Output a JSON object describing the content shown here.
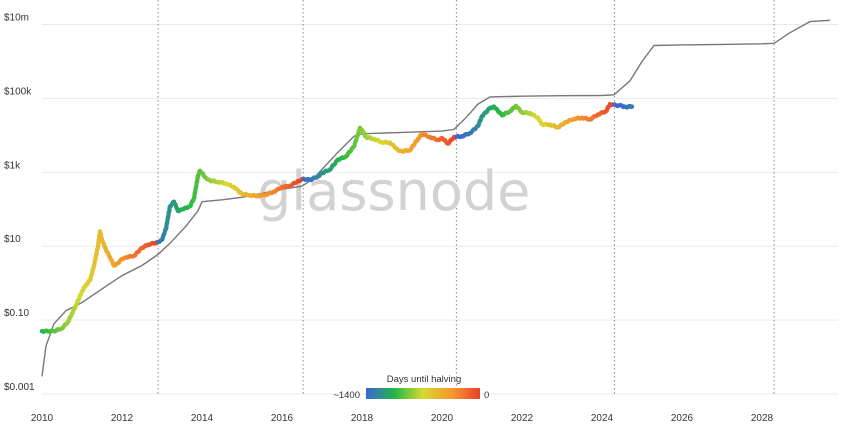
{
  "chart_data": {
    "type": "scatter",
    "title": "",
    "watermark": "glassnode",
    "x_ticks": [
      "2010",
      "2012",
      "2014",
      "2016",
      "2018",
      "2020",
      "2022",
      "2024",
      "2026",
      "2028"
    ],
    "y_ticks": [
      "$0.001",
      "$0.10",
      "$10",
      "$1k",
      "$100k",
      "$10m"
    ],
    "y_scale": "log",
    "xlim": [
      2010.0,
      2029.9
    ],
    "ylim": [
      0.001,
      15000000
    ],
    "grid": true,
    "halvings": [
      2012.9,
      2016.53,
      2020.36,
      2024.31,
      2028.3
    ],
    "legend": {
      "title": "Days until halving",
      "min_label": "~1400",
      "max_label": "0",
      "colors": [
        "#3b66d9",
        "#22b845",
        "#d7d932",
        "#f59a2c",
        "#e8412b"
      ],
      "placement": "bottom-center"
    },
    "series": [
      {
        "type": "line",
        "color": "#777777",
        "points": [
          [
            2010.0,
            0.003
          ],
          [
            2010.1,
            0.02
          ],
          [
            2010.3,
            0.08
          ],
          [
            2010.6,
            0.18
          ],
          [
            2011.0,
            0.3
          ],
          [
            2011.5,
            0.7
          ],
          [
            2012.0,
            1.6
          ],
          [
            2012.5,
            3.0
          ],
          [
            2012.9,
            6.0
          ],
          [
            2013.2,
            12
          ],
          [
            2013.6,
            35
          ],
          [
            2013.9,
            90
          ],
          [
            2014.0,
            160
          ],
          [
            2014.5,
            180
          ],
          [
            2015.0,
            210
          ],
          [
            2015.5,
            270
          ],
          [
            2016.0,
            350
          ],
          [
            2016.5,
            420
          ],
          [
            2016.8,
            700
          ],
          [
            2017.0,
            1200
          ],
          [
            2017.4,
            3500
          ],
          [
            2017.8,
            9500
          ],
          [
            2018.0,
            11000
          ],
          [
            2019.0,
            12000
          ],
          [
            2020.0,
            13000
          ],
          [
            2020.3,
            14500
          ],
          [
            2020.6,
            30000
          ],
          [
            2020.9,
            70000
          ],
          [
            2021.2,
            110000
          ],
          [
            2022.0,
            115000
          ],
          [
            2023.0,
            118000
          ],
          [
            2024.0,
            120000
          ],
          [
            2024.3,
            125000
          ],
          [
            2024.7,
            300000
          ],
          [
            2025.0,
            1000000
          ],
          [
            2025.3,
            2700000
          ],
          [
            2026.0,
            2800000
          ],
          [
            2027.0,
            2900000
          ],
          [
            2028.0,
            3000000
          ],
          [
            2028.3,
            3100000
          ],
          [
            2028.7,
            6000000
          ],
          [
            2029.2,
            12000000
          ],
          [
            2029.7,
            13000000
          ]
        ]
      },
      {
        "type": "scatter",
        "color_by": "days_until_halving",
        "points": [
          [
            2010.0,
            0.05
          ],
          [
            2010.3,
            0.05
          ],
          [
            2010.5,
            0.06
          ],
          [
            2010.65,
            0.09
          ],
          [
            2010.75,
            0.15
          ],
          [
            2010.85,
            0.25
          ],
          [
            2011.0,
            0.6
          ],
          [
            2011.1,
            0.9
          ],
          [
            2011.2,
            1.2
          ],
          [
            2011.3,
            3.0
          ],
          [
            2011.4,
            10
          ],
          [
            2011.45,
            25
          ],
          [
            2011.5,
            15
          ],
          [
            2011.6,
            8
          ],
          [
            2011.7,
            5
          ],
          [
            2011.8,
            3
          ],
          [
            2011.9,
            3.5
          ],
          [
            2012.0,
            4.5
          ],
          [
            2012.1,
            5
          ],
          [
            2012.3,
            5.5
          ],
          [
            2012.5,
            9
          ],
          [
            2012.65,
            11
          ],
          [
            2012.8,
            12
          ],
          [
            2012.9,
            13
          ],
          [
            2013.0,
            15
          ],
          [
            2013.1,
            30
          ],
          [
            2013.2,
            120
          ],
          [
            2013.3,
            160
          ],
          [
            2013.4,
            90
          ],
          [
            2013.5,
            100
          ],
          [
            2013.6,
            110
          ],
          [
            2013.7,
            120
          ],
          [
            2013.8,
            200
          ],
          [
            2013.9,
            800
          ],
          [
            2013.95,
            1100
          ],
          [
            2014.1,
            700
          ],
          [
            2014.2,
            600
          ],
          [
            2014.4,
            550
          ],
          [
            2014.6,
            500
          ],
          [
            2014.8,
            400
          ],
          [
            2015.0,
            260
          ],
          [
            2015.2,
            240
          ],
          [
            2015.4,
            230
          ],
          [
            2015.6,
            250
          ],
          [
            2015.8,
            300
          ],
          [
            2016.0,
            400
          ],
          [
            2016.2,
            430
          ],
          [
            2016.4,
            580
          ],
          [
            2016.55,
            660
          ],
          [
            2016.7,
            620
          ],
          [
            2016.9,
            780
          ],
          [
            2017.0,
            950
          ],
          [
            2017.2,
            1200
          ],
          [
            2017.4,
            2200
          ],
          [
            2017.6,
            2700
          ],
          [
            2017.8,
            5000
          ],
          [
            2017.95,
            16000
          ],
          [
            2018.0,
            14000
          ],
          [
            2018.1,
            9000
          ],
          [
            2018.3,
            8000
          ],
          [
            2018.5,
            6500
          ],
          [
            2018.7,
            6400
          ],
          [
            2018.9,
            4000
          ],
          [
            2019.0,
            3700
          ],
          [
            2019.2,
            4000
          ],
          [
            2019.4,
            8000
          ],
          [
            2019.5,
            11000
          ],
          [
            2019.7,
            9000
          ],
          [
            2019.9,
            7500
          ],
          [
            2020.0,
            8500
          ],
          [
            2020.15,
            6000
          ],
          [
            2020.3,
            9000
          ],
          [
            2020.5,
            9500
          ],
          [
            2020.7,
            11500
          ],
          [
            2020.9,
            18000
          ],
          [
            2021.0,
            33000
          ],
          [
            2021.2,
            55000
          ],
          [
            2021.3,
            60000
          ],
          [
            2021.5,
            35000
          ],
          [
            2021.7,
            45000
          ],
          [
            2021.85,
            63000
          ],
          [
            2022.0,
            42000
          ],
          [
            2022.2,
            40000
          ],
          [
            2022.4,
            30000
          ],
          [
            2022.5,
            20000
          ],
          [
            2022.7,
            19500
          ],
          [
            2022.9,
            16500
          ],
          [
            2023.1,
            23000
          ],
          [
            2023.3,
            28000
          ],
          [
            2023.5,
            30000
          ],
          [
            2023.7,
            27000
          ],
          [
            2023.9,
            37000
          ],
          [
            2024.1,
            45000
          ],
          [
            2024.2,
            70000
          ],
          [
            2024.35,
            65000
          ],
          [
            2024.5,
            63000
          ],
          [
            2024.6,
            58000
          ],
          [
            2024.7,
            62000
          ],
          [
            2024.75,
            60000
          ]
        ]
      }
    ]
  }
}
